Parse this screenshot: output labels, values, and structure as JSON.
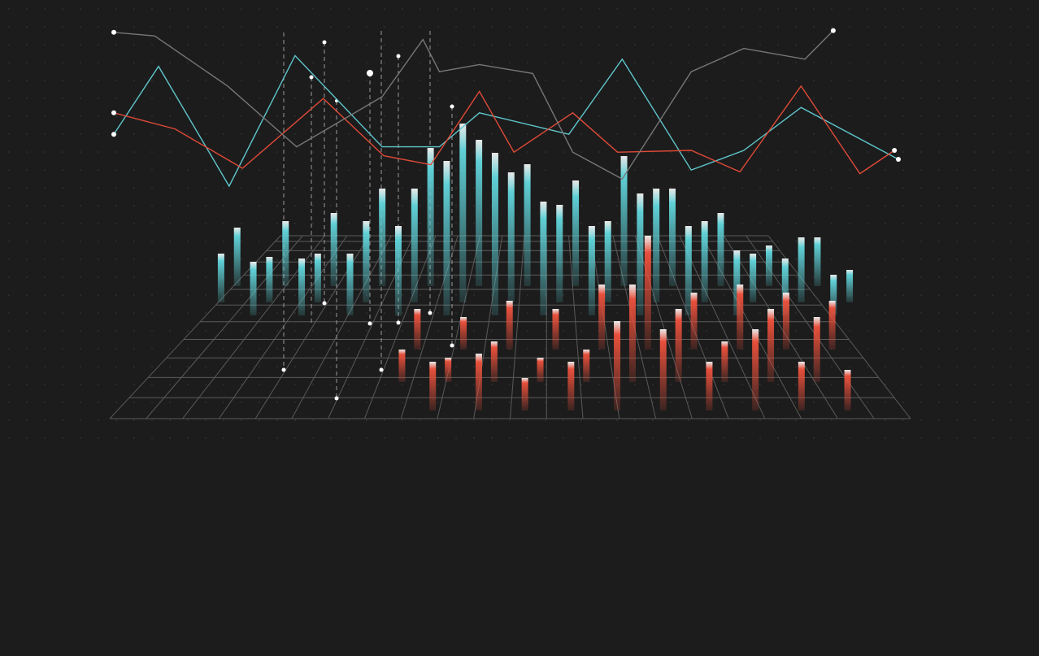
{
  "chart_data": [
    {
      "type": "line",
      "xlim": [
        0,
        100
      ],
      "ylim": [
        0,
        100
      ],
      "series": [
        {
          "color": "#5fc6cc",
          "x": [
            0,
            5.7,
            14.7,
            23.1,
            34.2,
            41.5,
            46.6,
            58.0,
            64.8,
            73.6,
            80.3,
            87.6,
            100
          ],
          "values": [
            34,
            72,
            5,
            78,
            27,
            27,
            46,
            34,
            76,
            14,
            25,
            49,
            20
          ]
        },
        {
          "color": "#e04a38",
          "x": [
            0,
            7.8,
            16.4,
            26.7,
            34.4,
            40.4,
            46.6,
            51.0,
            58.5,
            64.2,
            73.6,
            79.8,
            87.6,
            95.1,
            99.5
          ],
          "values": [
            46,
            37,
            15,
            54,
            22,
            17,
            58,
            24,
            46,
            24,
            25,
            13,
            61,
            12,
            25
          ]
        },
        {
          "color": "#777777",
          "x": [
            0,
            5.2,
            14.5,
            23.3,
            34.2,
            39.4,
            41.5,
            46.6,
            53.4,
            58.5,
            64.8,
            73.6,
            80.3,
            88.1,
            91.7
          ],
          "values": [
            91,
            89,
            61,
            27,
            55,
            87,
            69,
            73,
            68,
            24,
            9,
            69,
            82,
            76,
            92
          ]
        }
      ]
    },
    {
      "type": "bar3d",
      "ylim": [
        0,
        100
      ],
      "series": [
        {
          "color": "#5fd0d6",
          "values": [
            30,
            36,
            33,
            28,
            40,
            35,
            30,
            45,
            38,
            50,
            60,
            55,
            70,
            85,
            95,
            110,
            90,
            100,
            80,
            75,
            70,
            60,
            65,
            55,
            50,
            80,
            75,
            70,
            60,
            55,
            50,
            45,
            40,
            30,
            25,
            35,
            40,
            30,
            25,
            20
          ]
        },
        {
          "color": "#e8503c",
          "values": [
            20,
            25,
            30,
            15,
            20,
            35,
            25,
            30,
            20,
            15,
            25,
            30,
            20,
            40,
            55,
            60,
            70,
            50,
            45,
            35,
            30,
            25,
            40,
            50,
            45,
            35,
            30,
            40,
            30,
            25
          ]
        }
      ]
    }
  ]
}
